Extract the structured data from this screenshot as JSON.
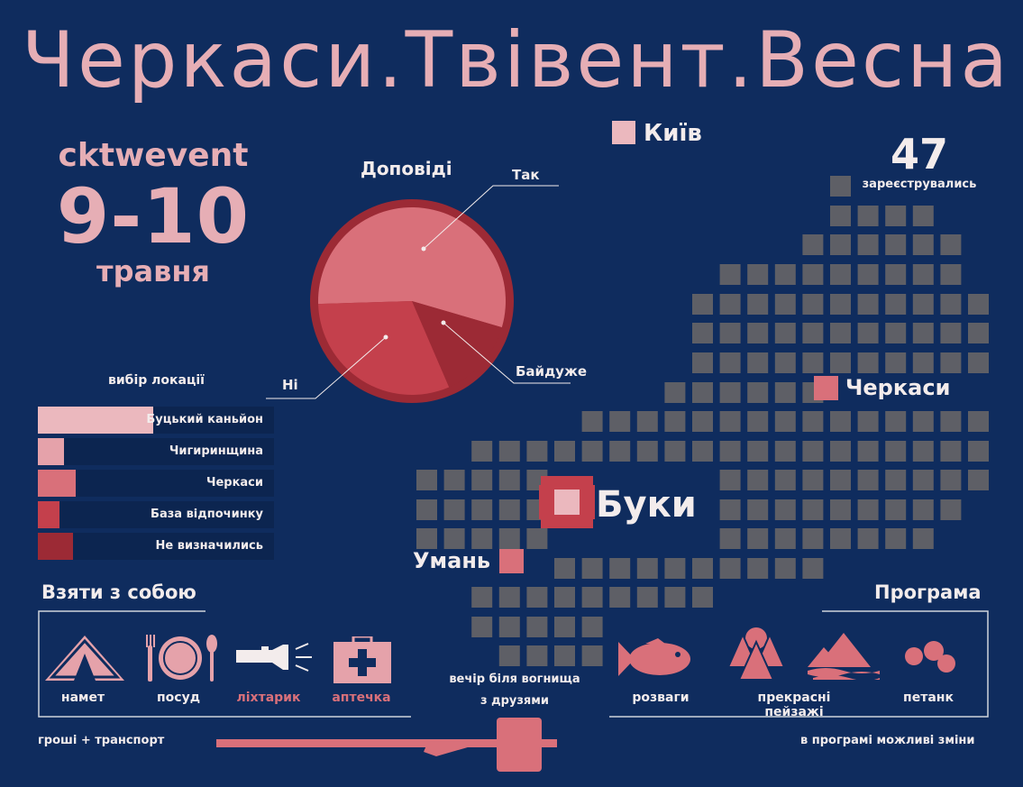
{
  "title": "Черкаси.Твівент.Весна",
  "event": {
    "hashtag": "cktwevent",
    "dates": "9-10",
    "month": "травня"
  },
  "registered": {
    "count": "47",
    "label": "зареєструвались"
  },
  "talks": {
    "title": "Доповіді",
    "slices": [
      {
        "label": "Так",
        "value": 55,
        "color": "#d9707a"
      },
      {
        "label": "Байдуже",
        "value": 14,
        "color": "#9c2a35"
      },
      {
        "label": "Ні",
        "value": 31,
        "color": "#c4404c"
      }
    ]
  },
  "location_choice": {
    "title": "вибір локації",
    "bars": [
      {
        "label": "Буцький каньйон",
        "value": 0.49,
        "color": "#ebb8be"
      },
      {
        "label": "Чигиринщина",
        "value": 0.11,
        "color": "#e5a2aa"
      },
      {
        "label": "Черкаси",
        "value": 0.16,
        "color": "#d9707a"
      },
      {
        "label": "База відпочинку",
        "value": 0.09,
        "color": "#c4404c"
      },
      {
        "label": "Не визначились",
        "value": 0.15,
        "color": "#9c2a35"
      }
    ]
  },
  "map": {
    "cities": {
      "kyiv": "Київ",
      "cherkasy": "Черкаси",
      "buky": "Буки",
      "uman": "Умань"
    },
    "colors": {
      "land": "#5e5f66",
      "city": "#d9707a",
      "accent": "#c4404c",
      "pale": "#ebb8be"
    }
  },
  "bring": {
    "title": "Взяти з собою",
    "items": [
      {
        "label": "намет",
        "icon": "tent-icon",
        "highlight": false
      },
      {
        "label": "посуд",
        "icon": "dishes-icon",
        "highlight": false
      },
      {
        "label": "ліхтарик",
        "icon": "flashlight-icon",
        "highlight": true
      },
      {
        "label": "аптечка",
        "icon": "first-aid-kit-icon",
        "highlight": true
      }
    ],
    "extra": "гроші + транспорт"
  },
  "program": {
    "title": "Програма",
    "items": [
      {
        "label": "розваги",
        "icon": "fish-icon"
      },
      {
        "label": "прекрасні пейзажі",
        "icon": "forest-icon"
      },
      {
        "label": "петанк",
        "icon": "petanque-balls-icon"
      }
    ],
    "note": "в програмі можливі зміни"
  },
  "campfire": {
    "line1": "вечір біля вогнища",
    "line2": "з друзями"
  }
}
